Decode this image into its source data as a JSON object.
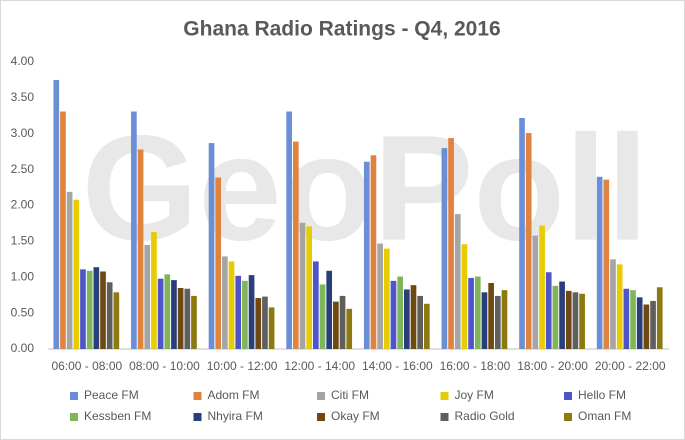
{
  "watermark": "GeoPoll",
  "chart_data": {
    "type": "bar",
    "title": "Ghana Radio Ratings - Q4, 2016",
    "categories": [
      "06:00 - 08:00",
      "08:00 - 10:00",
      "10:00 - 12:00",
      "12:00 - 14:00",
      "14:00 - 16:00",
      "16:00 - 18:00",
      "18:00 - 20:00",
      "20:00 - 22:00"
    ],
    "series": [
      {
        "name": "Peace FM",
        "color": "#6b8fd6",
        "values": [
          3.75,
          3.31,
          2.87,
          3.31,
          2.61,
          2.8,
          3.22,
          2.4
        ]
      },
      {
        "name": "Adom FM",
        "color": "#e0833f",
        "values": [
          3.31,
          2.78,
          2.39,
          2.89,
          2.7,
          2.94,
          3.01,
          2.36
        ]
      },
      {
        "name": "Citi FM",
        "color": "#a5a5a5",
        "values": [
          2.19,
          1.45,
          1.29,
          1.76,
          1.47,
          1.88,
          1.58,
          1.25
        ]
      },
      {
        "name": "Joy FM",
        "color": "#e6cc00",
        "values": [
          2.08,
          1.63,
          1.22,
          1.71,
          1.4,
          1.46,
          1.72,
          1.18
        ]
      },
      {
        "name": "Hello FM",
        "color": "#4f55c9",
        "values": [
          1.11,
          0.98,
          1.02,
          1.22,
          0.95,
          0.99,
          1.07,
          0.84
        ]
      },
      {
        "name": "Kessben FM",
        "color": "#7fb65a",
        "values": [
          1.09,
          1.04,
          0.95,
          0.9,
          1.01,
          1.01,
          0.88,
          0.82
        ]
      },
      {
        "name": "Nhyira FM",
        "color": "#2a3f7a",
        "values": [
          1.14,
          0.96,
          1.03,
          1.09,
          0.83,
          0.79,
          0.94,
          0.72
        ]
      },
      {
        "name": "Okay FM",
        "color": "#6e4a12",
        "values": [
          1.08,
          0.85,
          0.71,
          0.66,
          0.89,
          0.92,
          0.81,
          0.62
        ]
      },
      {
        "name": "Radio Gold",
        "color": "#5f5f5f",
        "values": [
          0.93,
          0.84,
          0.73,
          0.74,
          0.74,
          0.74,
          0.79,
          0.67
        ]
      },
      {
        "name": "Oman FM",
        "color": "#8c7a10",
        "values": [
          0.79,
          0.74,
          0.58,
          0.56,
          0.63,
          0.82,
          0.77,
          0.86
        ]
      }
    ],
    "ylim": [
      0,
      4
    ],
    "yticks": [
      {
        "value": 0,
        "label": "0.00"
      },
      {
        "value": 0.5,
        "label": "0.50"
      },
      {
        "value": 1,
        "label": "1.00"
      },
      {
        "value": 1.5,
        "label": "1.50"
      },
      {
        "value": 2,
        "label": "2.00"
      },
      {
        "value": 2.5,
        "label": "2.50"
      },
      {
        "value": 3,
        "label": "3.00"
      },
      {
        "value": 3.5,
        "label": "3.50"
      },
      {
        "value": 4,
        "label": "4.00"
      }
    ],
    "grid": false
  }
}
